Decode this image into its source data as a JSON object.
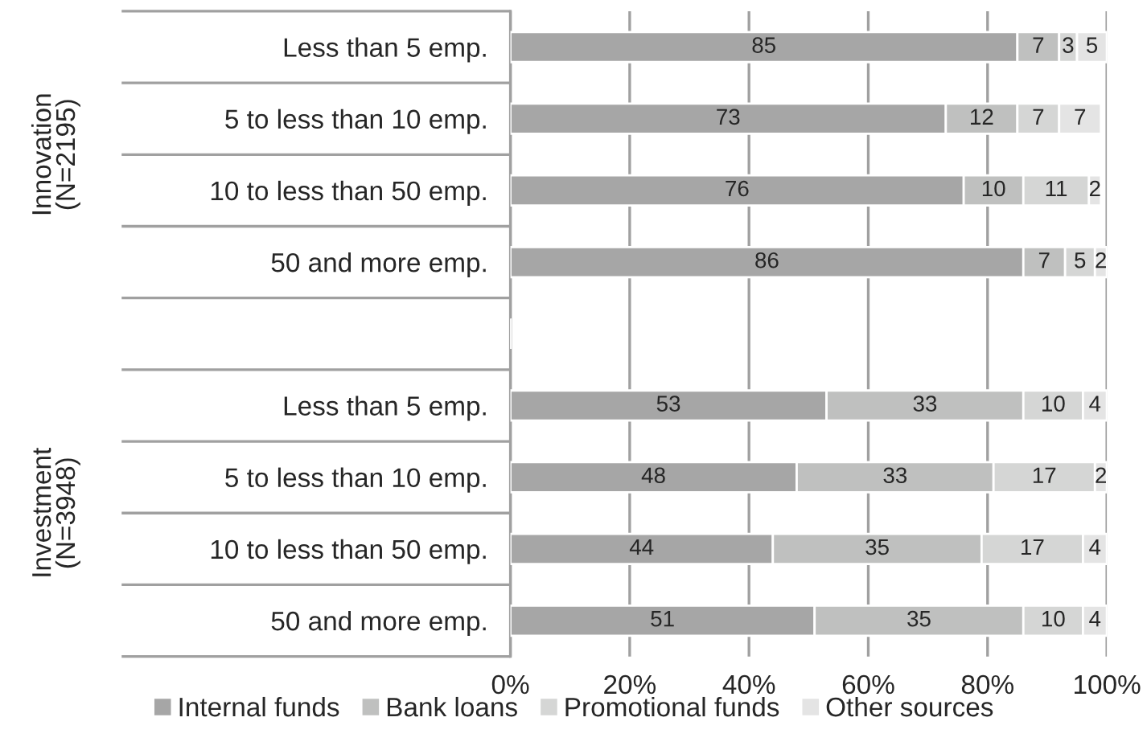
{
  "chart_data": {
    "type": "bar",
    "orientation": "horizontal",
    "stacked": true,
    "data_labels": true,
    "grid": "x",
    "legend": "bottom",
    "categories": [
      "Less than 5 emp.",
      "5 to less than 10 emp.",
      "10 to less than 50 emp.",
      "50 and more emp.",
      null,
      "Less than 5 emp.",
      "5 to less than 10 emp.",
      "10 to less than 50 emp.",
      "50 and more emp."
    ],
    "series": [
      {
        "name": "Internal funds",
        "color": "#a6a6a6",
        "values": [
          85,
          73,
          76,
          86,
          null,
          53,
          48,
          44,
          51
        ]
      },
      {
        "name": "Bank loans",
        "color": "#bfc0bf",
        "values": [
          7,
          12,
          10,
          7,
          null,
          33,
          33,
          35,
          35
        ]
      },
      {
        "name": "Promotional funds",
        "color": "#d5d6d5",
        "values": [
          3,
          7,
          11,
          5,
          null,
          10,
          17,
          17,
          10
        ]
      },
      {
        "name": "Other sources",
        "color": "#e4e4e4",
        "values": [
          5,
          7,
          2,
          2,
          null,
          4,
          2,
          4,
          4
        ]
      }
    ],
    "xlim": [
      0,
      100
    ],
    "xticks": [
      {
        "value": 0,
        "label": "0%"
      },
      {
        "value": 20,
        "label": "20%"
      },
      {
        "value": 40,
        "label": "40%"
      },
      {
        "value": 60,
        "label": "60%"
      },
      {
        "value": 80,
        "label": "80%"
      },
      {
        "value": 100,
        "label": "100%"
      }
    ],
    "annotations": [
      "Innovation\n(N=2195)",
      "Investment\n(N=3948)"
    ]
  }
}
